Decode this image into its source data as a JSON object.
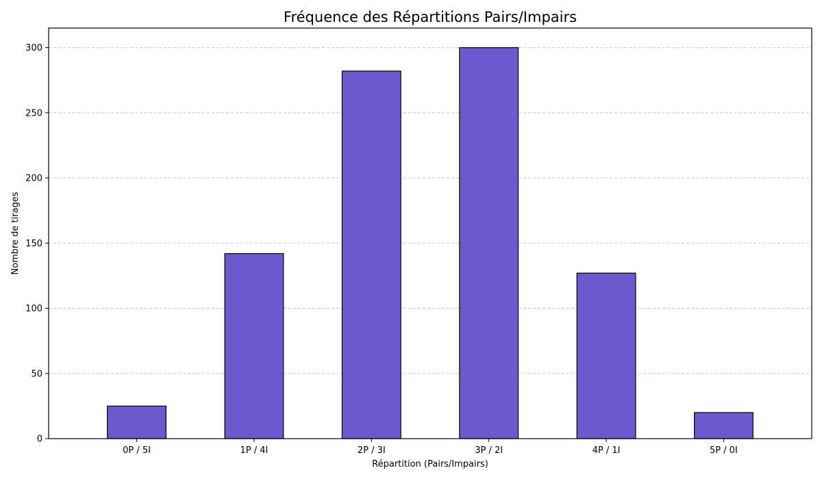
{
  "chart_data": {
    "type": "bar",
    "title": "Fréquence des Répartitions Pairs/Impairs",
    "xlabel": "Répartition (Pairs/Impairs)",
    "ylabel": "Nombre de tirages",
    "categories": [
      "0P / 5I",
      "1P / 4I",
      "2P / 3I",
      "3P / 2I",
      "4P / 1I",
      "5P / 0I"
    ],
    "values": [
      25,
      142,
      282,
      300,
      127,
      20
    ],
    "ylim": [
      0,
      315
    ],
    "yticks": [
      0,
      50,
      100,
      150,
      200,
      250,
      300
    ],
    "grid": "y-dashed",
    "bar_color": "#6a5acd",
    "bar_edge_color": "#000000"
  }
}
